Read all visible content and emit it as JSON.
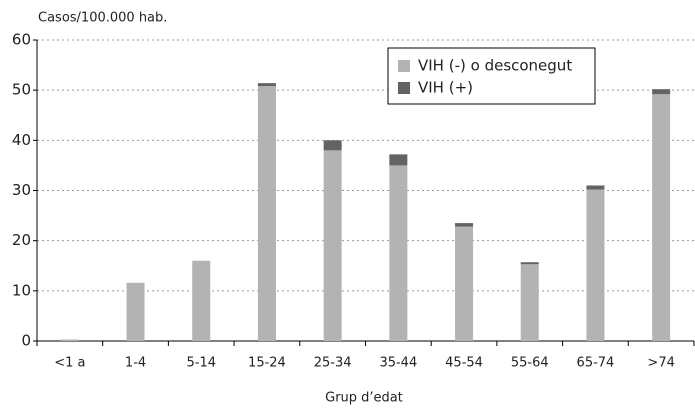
{
  "chart_data": {
    "type": "stacked_bar",
    "y_axis_label": "Casos/100.000 hab.",
    "x_axis_label": "Grup d’edat",
    "categories": [
      "<1 a",
      "1-4",
      "5-14",
      "15-24",
      "25-34",
      "35-44",
      "45-54",
      "55-64",
      "65-74",
      ">74"
    ],
    "series": [
      {
        "name": "VIH (-) o desconegut",
        "color": "#b3b3b3",
        "values": [
          0.3,
          11.6,
          16,
          50.8,
          38,
          35,
          22.8,
          15.3,
          30.2,
          49.2
        ]
      },
      {
        "name": "VIH (+)",
        "color": "#636363",
        "values": [
          0,
          0,
          0,
          0.6,
          2,
          2.2,
          0.7,
          0.4,
          0.8,
          1
        ]
      }
    ],
    "ylim": [
      0,
      60
    ],
    "yticks": [
      0,
      10,
      20,
      30,
      40,
      50,
      60
    ],
    "grid": true
  }
}
